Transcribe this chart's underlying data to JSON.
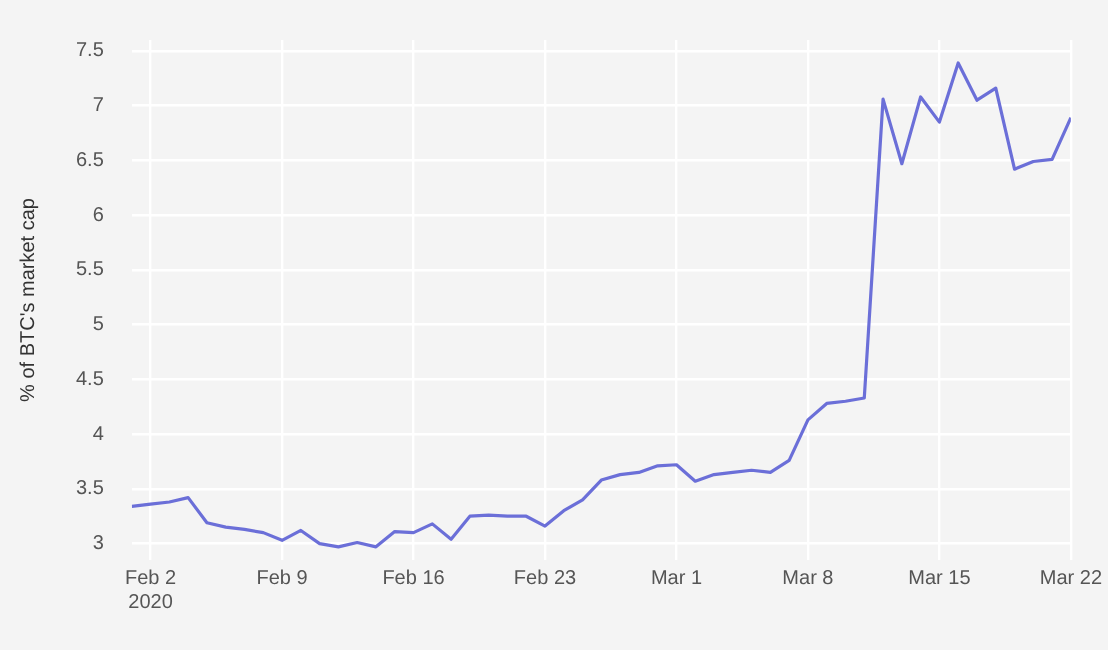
{
  "chart_data": {
    "type": "line",
    "ylabel": "% of BTC's market cap",
    "x": [
      "2020-02-01",
      "2020-02-02",
      "2020-02-03",
      "2020-02-04",
      "2020-02-05",
      "2020-02-06",
      "2020-02-07",
      "2020-02-08",
      "2020-02-09",
      "2020-02-10",
      "2020-02-11",
      "2020-02-12",
      "2020-02-13",
      "2020-02-14",
      "2020-02-15",
      "2020-02-16",
      "2020-02-17",
      "2020-02-18",
      "2020-02-19",
      "2020-02-20",
      "2020-02-21",
      "2020-02-22",
      "2020-02-23",
      "2020-02-24",
      "2020-02-25",
      "2020-02-26",
      "2020-02-27",
      "2020-02-28",
      "2020-02-29",
      "2020-03-01",
      "2020-03-02",
      "2020-03-03",
      "2020-03-04",
      "2020-03-05",
      "2020-03-06",
      "2020-03-07",
      "2020-03-08",
      "2020-03-09",
      "2020-03-10",
      "2020-03-11",
      "2020-03-12",
      "2020-03-13",
      "2020-03-14",
      "2020-03-15",
      "2020-03-16",
      "2020-03-17",
      "2020-03-18",
      "2020-03-19",
      "2020-03-20",
      "2020-03-21",
      "2020-03-22"
    ],
    "series": [
      {
        "color": "#6b6fd8",
        "values": [
          3.34,
          3.36,
          3.38,
          3.42,
          3.19,
          3.15,
          3.13,
          3.1,
          3.03,
          3.12,
          3.0,
          2.97,
          3.01,
          2.97,
          3.11,
          3.1,
          3.18,
          3.04,
          3.25,
          3.26,
          3.25,
          3.25,
          3.16,
          3.3,
          3.4,
          3.58,
          3.63,
          3.65,
          3.71,
          3.72,
          3.57,
          3.63,
          3.65,
          3.67,
          3.65,
          3.76,
          4.13,
          4.28,
          4.3,
          4.33,
          7.06,
          6.47,
          7.08,
          6.85,
          7.39,
          7.05,
          7.16,
          6.42,
          6.49,
          6.51,
          6.89
        ]
      }
    ],
    "xlim": [
      "2020-02-01",
      "2020-03-22"
    ],
    "xticks": [
      {
        "value": "2020-02-02",
        "label": "Feb 2\n2020"
      },
      {
        "value": "2020-02-09",
        "label": "Feb 9"
      },
      {
        "value": "2020-02-16",
        "label": "Feb 16"
      },
      {
        "value": "2020-02-23",
        "label": "Feb 23"
      },
      {
        "value": "2020-03-01",
        "label": "Mar 1"
      },
      {
        "value": "2020-03-08",
        "label": "Mar 8"
      },
      {
        "value": "2020-03-15",
        "label": "Mar 15"
      },
      {
        "value": "2020-03-22",
        "label": "Mar 22"
      }
    ],
    "ylim": [
      2.85,
      7.6
    ],
    "yticks": [
      3,
      3.5,
      4,
      4.5,
      5,
      5.5,
      6,
      6.5,
      7,
      7.5
    ],
    "grid": true,
    "legend": false,
    "marker": "none",
    "line_style": "solid"
  }
}
